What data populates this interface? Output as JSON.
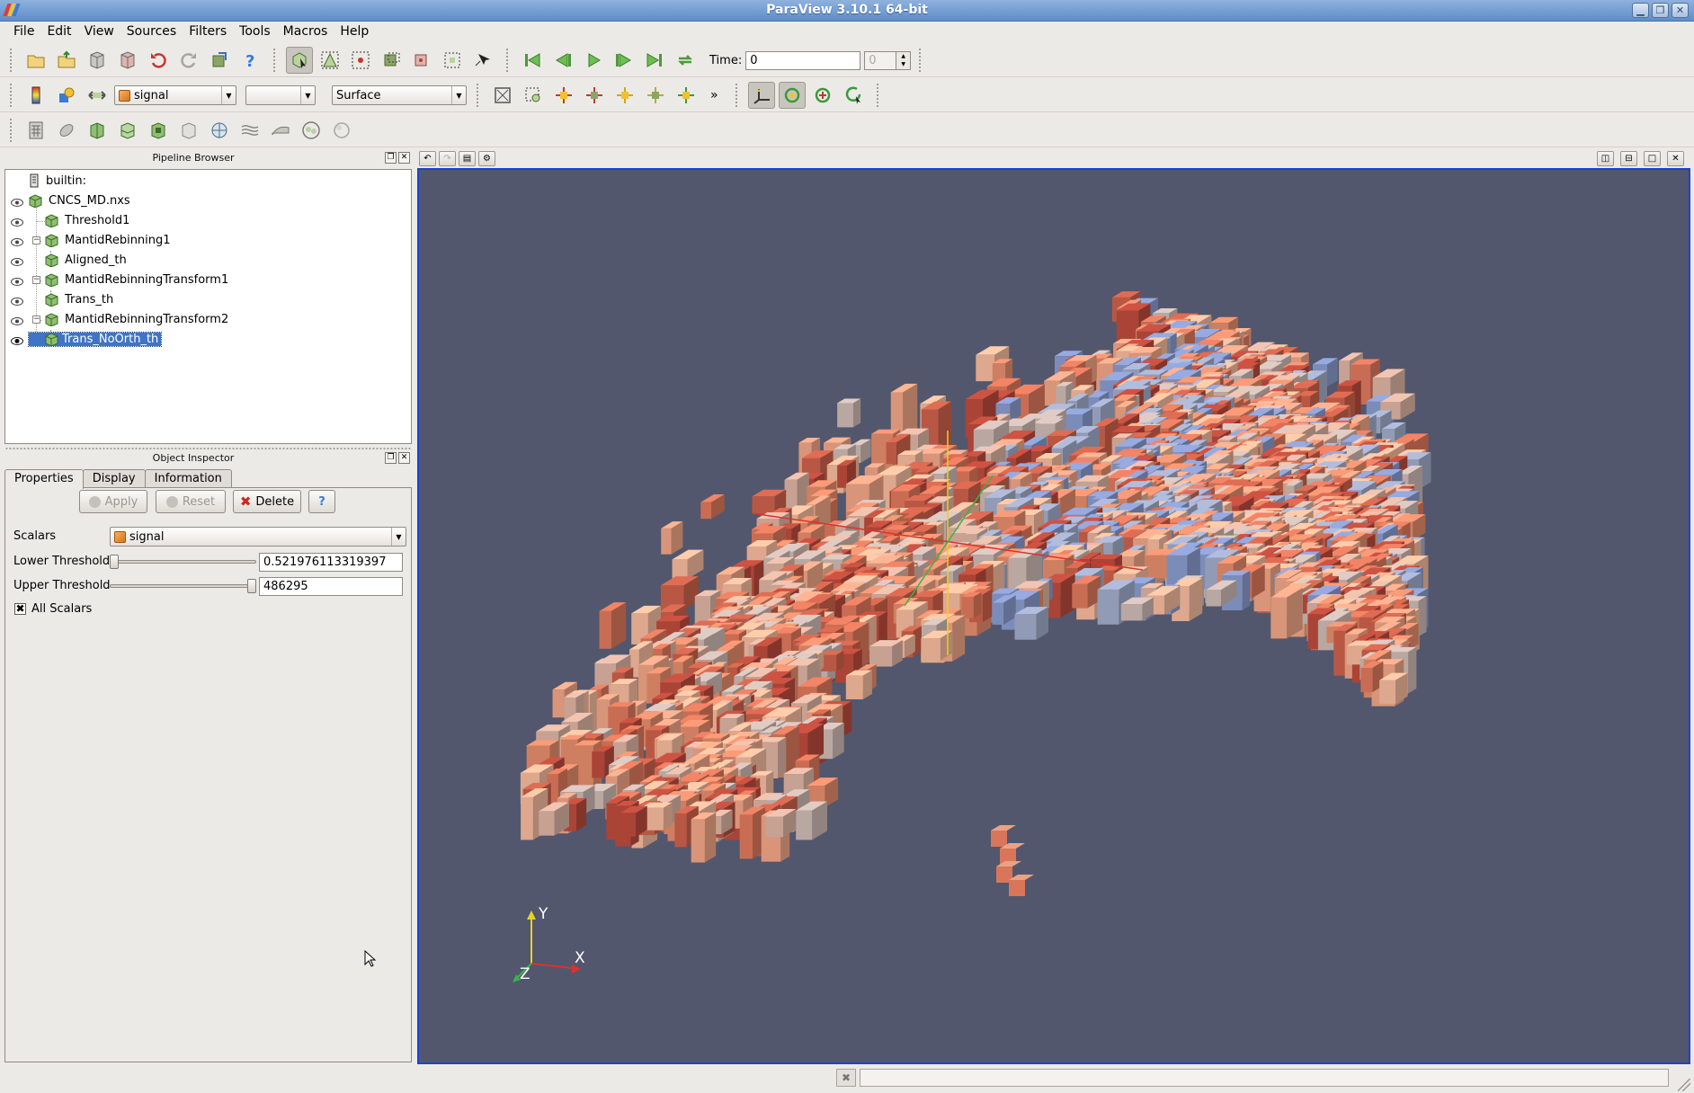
{
  "window": {
    "title": "ParaView 3.10.1 64-bit",
    "controls": [
      "minimize-icon",
      "maximize-icon",
      "close-icon"
    ]
  },
  "menu": {
    "items": [
      {
        "label": "File"
      },
      {
        "label": "Edit"
      },
      {
        "label": "View"
      },
      {
        "label": "Sources"
      },
      {
        "label": "Filters"
      },
      {
        "label": "Tools"
      },
      {
        "label": "Macros"
      },
      {
        "label": "Help"
      }
    ]
  },
  "toolbar": {
    "time_label": "Time:",
    "time_value": "0",
    "time_step": "0",
    "color_by": "signal",
    "component": "",
    "representation": "Surface",
    "overflow": "»"
  },
  "pipeline": {
    "title": "Pipeline Browser",
    "server": "builtin:",
    "items": [
      {
        "label": "CNCS_MD.nxs"
      },
      {
        "label": "Threshold1"
      },
      {
        "label": "MantidRebinning1"
      },
      {
        "label": "Aligned_th"
      },
      {
        "label": "MantidRebinningTransform1"
      },
      {
        "label": "Trans_th"
      },
      {
        "label": "MantidRebinningTransform2"
      },
      {
        "label": "Trans_NoOrth_th"
      }
    ]
  },
  "inspector": {
    "title": "Object Inspector",
    "tabs": [
      {
        "label": "Properties"
      },
      {
        "label": "Display"
      },
      {
        "label": "Information"
      }
    ],
    "buttons": {
      "apply": "Apply",
      "reset": "Reset",
      "delete": "Delete",
      "help": "?"
    },
    "scalars_label": "Scalars",
    "scalars_value": "signal",
    "lower_label": "Lower Threshold",
    "lower_value": "0.521976113319397",
    "lower_fraction": 0.0,
    "upper_label": "Upper Threshold",
    "upper_value": "486295",
    "upper_fraction": 1.0,
    "all_scalars_label": "All Scalars",
    "all_scalars_checked": true
  },
  "viewport": {
    "background": "#52576d",
    "axes": {
      "x": "X",
      "y": "Y",
      "z": "Z"
    }
  },
  "colors": {
    "selection": "#3f74c7",
    "active_view_border": "#1f3fd6"
  }
}
